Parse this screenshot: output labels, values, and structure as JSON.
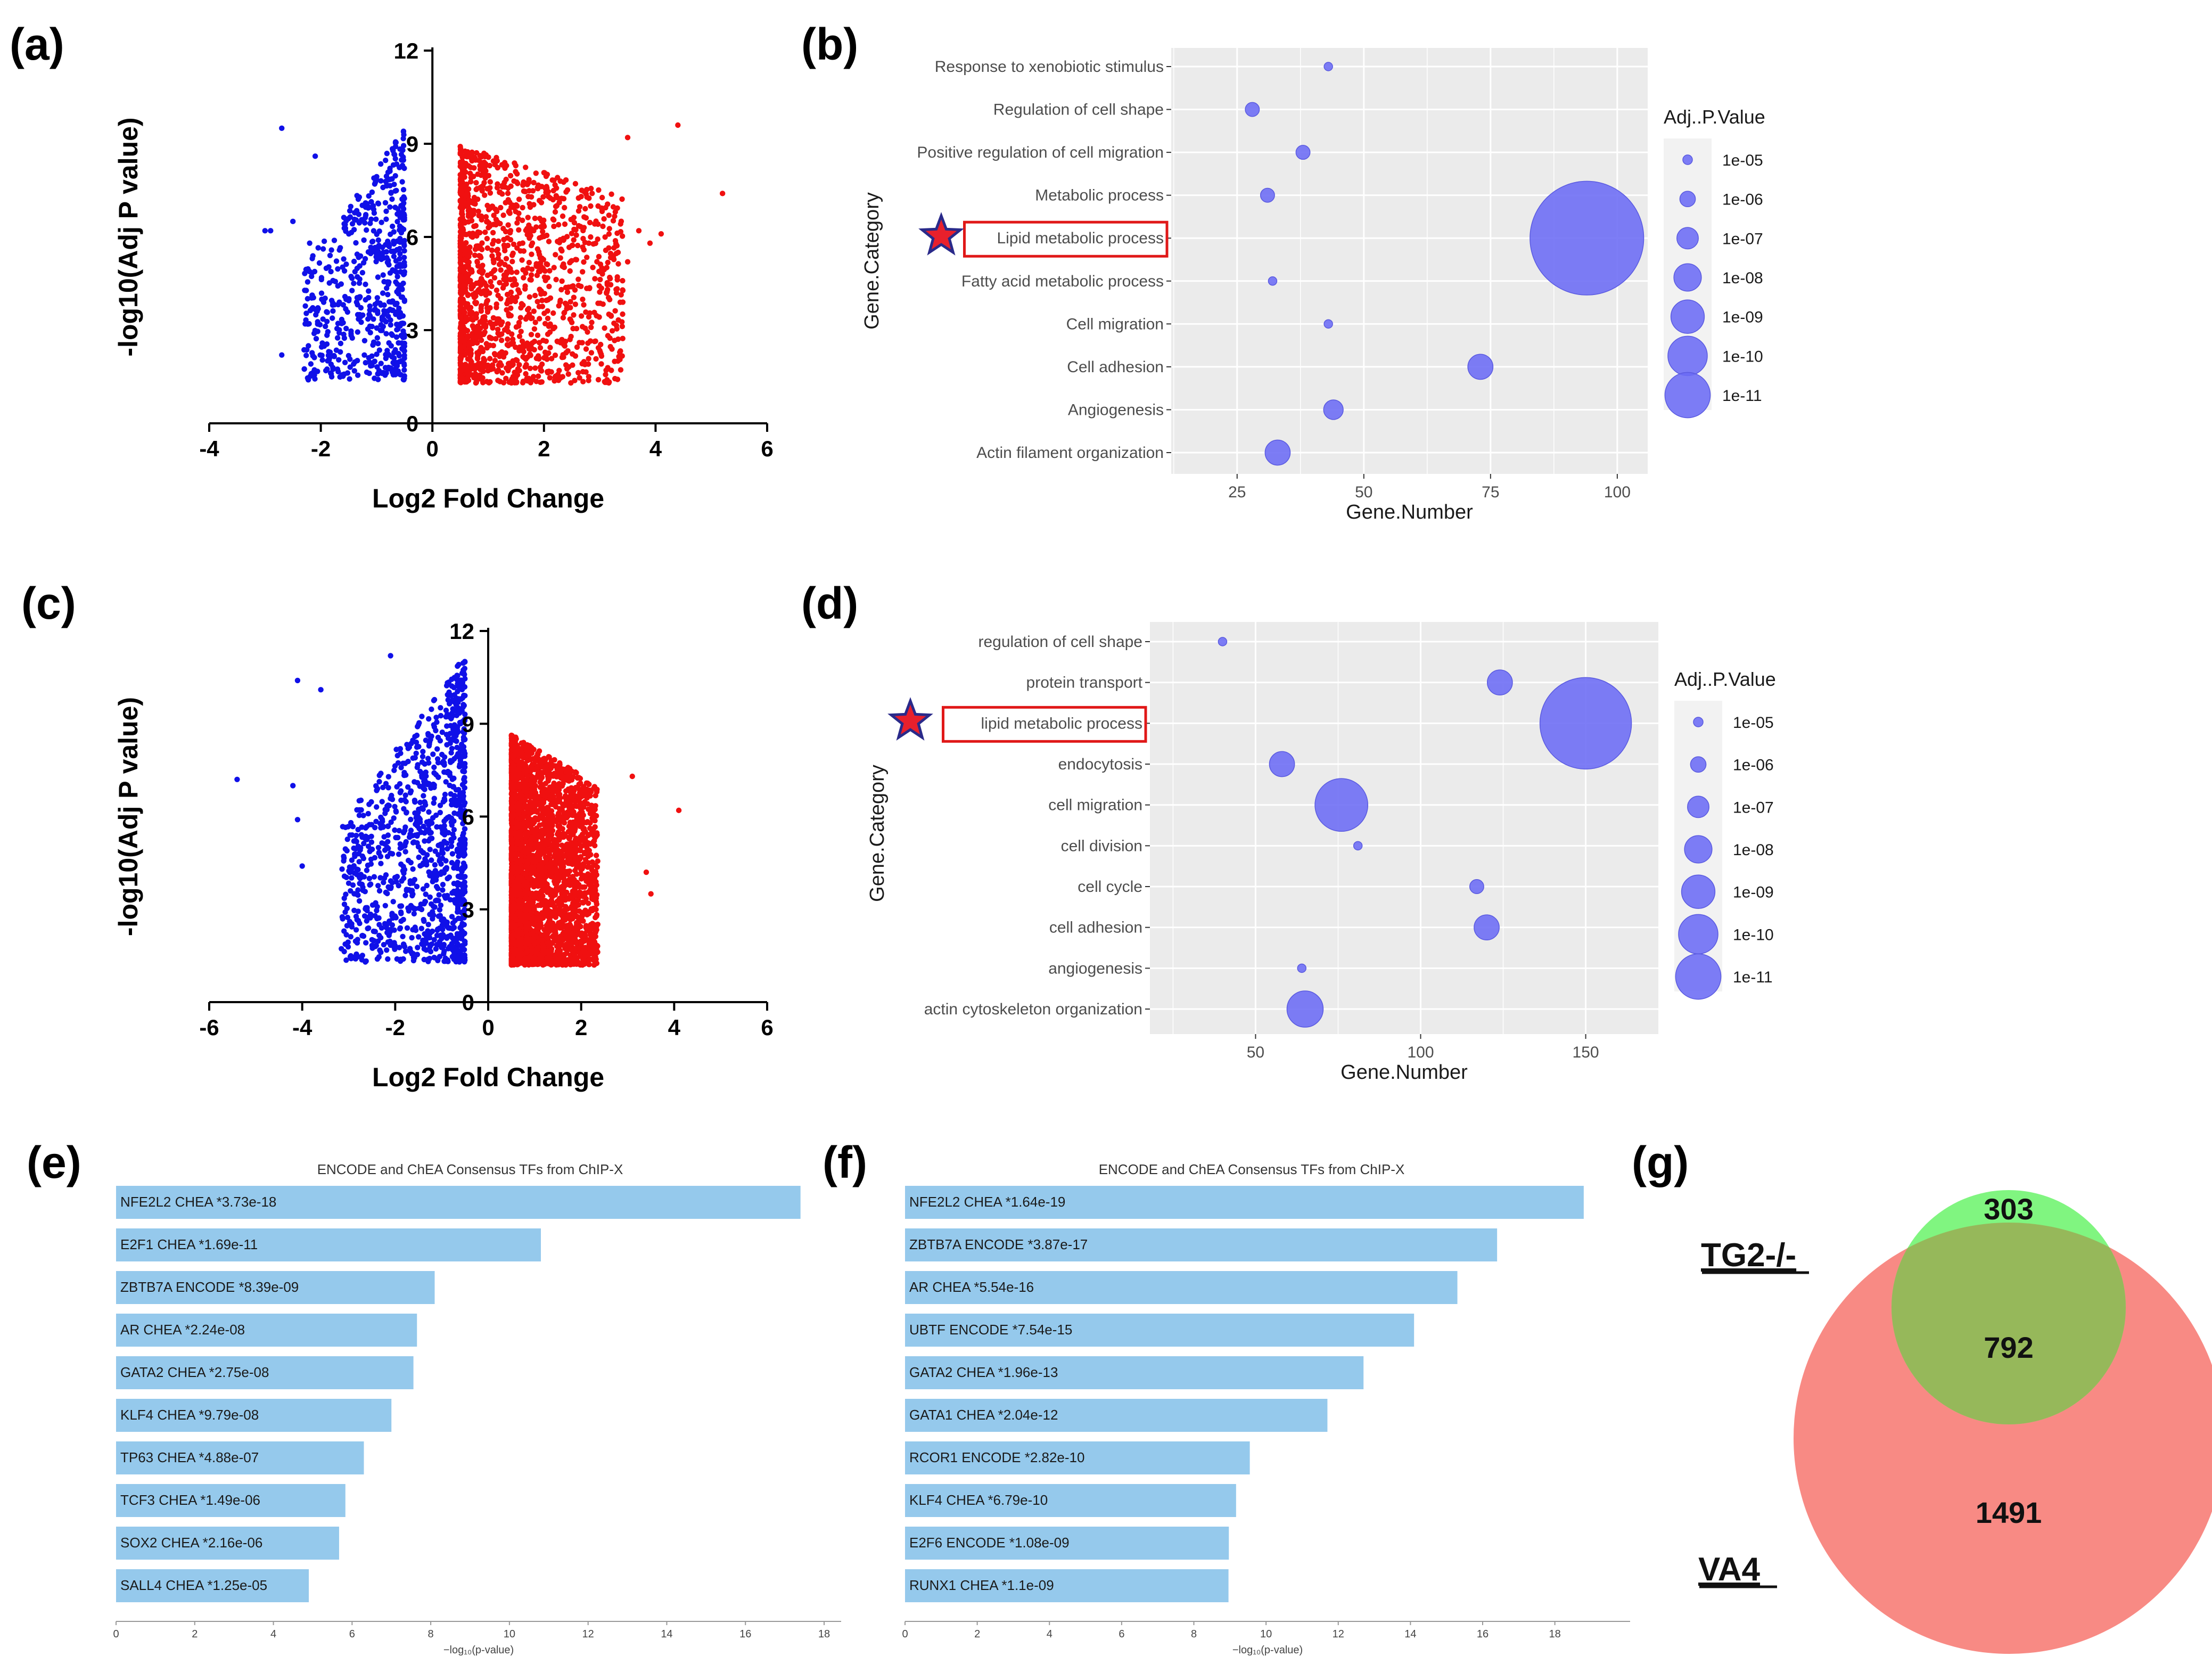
{
  "panel_labels": [
    "(a)",
    "(b)",
    "(c)",
    "(d)",
    "(e)",
    "(f)",
    "(g)"
  ],
  "colors": {
    "down": "#1010e8",
    "up": "#f01010",
    "dot": "#6b6bf5",
    "dot_edge": "#5a5ae0",
    "panel_bg": "#ebebeb",
    "bar": "#95c9ec",
    "highlight_box": "#e01818",
    "star_fill": "#e8202c",
    "star_edge": "#2a2a8a",
    "venn_green": "#80f580",
    "venn_red": "#f88a84",
    "venn_overlap": "#96b85a"
  },
  "chart_data": [
    {
      "id": "a",
      "type": "scatter",
      "title": "",
      "xlabel": "Log2 Fold Change",
      "ylabel": "-log10(Adj P value)",
      "xlim": [
        -4,
        6
      ],
      "ylim": [
        0,
        12
      ],
      "xticks": [
        -4,
        -2,
        0,
        2,
        4,
        6
      ],
      "yticks": [
        0,
        3,
        6,
        9,
        12
      ],
      "series": [
        {
          "name": "down",
          "color": "#1010e8",
          "x_range": [
            -3.0,
            -0.5
          ],
          "y_range": [
            1.4,
            9.5
          ],
          "n_points": 600,
          "outliers": [
            [
              -2.7,
              9.5
            ],
            [
              -2.1,
              8.6
            ],
            [
              -2.9,
              6.2
            ],
            [
              -2.7,
              2.2
            ],
            [
              -2.5,
              6.5
            ],
            [
              -2.2,
              5.8
            ],
            [
              -3.0,
              6.2
            ]
          ]
        },
        {
          "name": "up",
          "color": "#f01010",
          "x_range": [
            0.5,
            5.2
          ],
          "y_range": [
            1.3,
            9.6
          ],
          "n_points": 1450,
          "outliers": [
            [
              4.4,
              9.6
            ],
            [
              5.2,
              7.4
            ],
            [
              3.5,
              9.2
            ],
            [
              3.7,
              6.2
            ],
            [
              4.1,
              6.1
            ],
            [
              3.3,
              4.2
            ],
            [
              3.5,
              5.2
            ],
            [
              3.9,
              5.8
            ]
          ]
        }
      ]
    },
    {
      "id": "b",
      "type": "scatter",
      "title": "",
      "xlabel": "Gene.Number",
      "ylabel": "Gene.Category",
      "xlim": [
        12,
        106
      ],
      "xticks": [
        25,
        50,
        75,
        100
      ],
      "categories": [
        "Response to xenobiotic stimulus",
        "Regulation of cell shape",
        "Positive regulation of cell migration",
        "Metabolic process",
        "Lipid metabolic process",
        "Fatty acid metabolic process",
        "Cell migration",
        "Cell adhesion",
        "Angiogenesis",
        "Actin filament organization"
      ],
      "highlight": "Lipid metabolic process",
      "points": [
        {
          "category": "Response to xenobiotic stimulus",
          "gene_number": 43,
          "adj_p": "1e-05"
        },
        {
          "category": "Regulation of cell shape",
          "gene_number": 28,
          "adj_p": "1e-06"
        },
        {
          "category": "Positive regulation of cell migration",
          "gene_number": 38,
          "adj_p": "1e-06"
        },
        {
          "category": "Metabolic process",
          "gene_number": 31,
          "adj_p": "1e-06"
        },
        {
          "category": "Lipid metabolic process",
          "gene_number": 94,
          "adj_p": "1e-24"
        },
        {
          "category": "Fatty acid metabolic process",
          "gene_number": 32,
          "adj_p": "1e-05"
        },
        {
          "category": "Cell migration",
          "gene_number": 43,
          "adj_p": "1e-05"
        },
        {
          "category": "Cell adhesion",
          "gene_number": 73,
          "adj_p": "1e-08"
        },
        {
          "category": "Angiogenesis",
          "gene_number": 44,
          "adj_p": "1e-07"
        },
        {
          "category": "Actin filament organization",
          "gene_number": 33,
          "adj_p": "1e-08"
        }
      ],
      "legend": {
        "title": "Adj..P.Value",
        "entries": [
          "1e-05",
          "1e-06",
          "1e-07",
          "1e-08",
          "1e-09",
          "1e-10",
          "1e-11"
        ]
      }
    },
    {
      "id": "c",
      "type": "scatter",
      "title": "",
      "xlabel": "Log2 Fold Change",
      "ylabel": "-log10(Adj P value)",
      "xlim": [
        -6,
        6
      ],
      "ylim": [
        0,
        12
      ],
      "xticks": [
        -6,
        -4,
        -2,
        0,
        2,
        4,
        6
      ],
      "yticks": [
        0,
        3,
        6,
        9,
        12
      ],
      "series": [
        {
          "name": "down",
          "color": "#1010e8",
          "x_range": [
            -4.2,
            -0.5
          ],
          "y_range": [
            1.3,
            11.2
          ],
          "n_points": 1100,
          "outliers": [
            [
              -5.4,
              7.2
            ],
            [
              -4.1,
              10.4
            ],
            [
              -3.6,
              10.1
            ],
            [
              -4.2,
              7.0
            ],
            [
              -4.0,
              4.4
            ],
            [
              -4.1,
              5.9
            ],
            [
              -2.1,
              11.2
            ]
          ]
        },
        {
          "name": "up",
          "color": "#f01010",
          "x_range": [
            0.5,
            3.5
          ],
          "y_range": [
            1.2,
            9.3
          ],
          "n_points": 3200,
          "outliers": [
            [
              4.1,
              6.2
            ],
            [
              3.1,
              7.3
            ],
            [
              3.5,
              3.5
            ],
            [
              3.4,
              4.2
            ]
          ]
        }
      ]
    },
    {
      "id": "d",
      "type": "scatter",
      "title": "",
      "xlabel": "Gene.Number",
      "ylabel": "Gene.Category",
      "xlim": [
        18,
        172
      ],
      "xticks": [
        50,
        100,
        150
      ],
      "categories": [
        "regulation of cell shape",
        "protein transport",
        "lipid metabolic process",
        "endocytosis",
        "cell migration",
        "cell division",
        "cell cycle",
        "cell adhesion",
        "angiogenesis",
        "actin cytoskeleton organization"
      ],
      "highlight": "lipid metabolic process",
      "points": [
        {
          "category": "regulation of cell shape",
          "gene_number": 40,
          "adj_p": "1e-05"
        },
        {
          "category": "protein transport",
          "gene_number": 124,
          "adj_p": "1e-08"
        },
        {
          "category": "lipid metabolic process",
          "gene_number": 150,
          "adj_p": "1e-20"
        },
        {
          "category": "endocytosis",
          "gene_number": 58,
          "adj_p": "1e-08"
        },
        {
          "category": "cell migration",
          "gene_number": 76,
          "adj_p": "1e-13"
        },
        {
          "category": "cell division",
          "gene_number": 81,
          "adj_p": "1e-05"
        },
        {
          "category": "cell cycle",
          "gene_number": 117,
          "adj_p": "1e-06"
        },
        {
          "category": "cell adhesion",
          "gene_number": 120,
          "adj_p": "1e-08"
        },
        {
          "category": "angiogenesis",
          "gene_number": 64,
          "adj_p": "1e-05"
        },
        {
          "category": "actin cytoskeleton organization",
          "gene_number": 65,
          "adj_p": "1e-10"
        }
      ],
      "legend": {
        "title": "Adj..P.Value",
        "entries": [
          "1e-05",
          "1e-06",
          "1e-07",
          "1e-08",
          "1e-09",
          "1e-10",
          "1e-11"
        ]
      }
    },
    {
      "id": "e",
      "type": "bar",
      "orientation": "horizontal",
      "title": "ENCODE and ChEA Consensus TFs from ChIP-X",
      "xlabel": "−log₁₀(p‐value)",
      "xlim": [
        0,
        18
      ],
      "xticks": [
        0,
        2,
        4,
        6,
        8,
        10,
        12,
        14,
        16,
        18
      ],
      "categories": [
        "NFE2L2 CHEA  *3.73e-18",
        "E2F1 CHEA  *1.69e-11",
        "ZBTB7A ENCODE  *8.39e-09",
        "AR CHEA  *2.24e-08",
        "GATA2 CHEA  *2.75e-08",
        "KLF4 CHEA  *9.79e-08",
        "TP63 CHEA  *4.88e-07",
        "TCF3 CHEA  *1.49e-06",
        "SOX2 CHEA  *2.16e-06",
        "SALL4 CHEA  *1.25e-05"
      ],
      "values": [
        17.4,
        10.8,
        8.1,
        7.65,
        7.56,
        7.0,
        6.3,
        5.83,
        5.67,
        4.9
      ]
    },
    {
      "id": "f",
      "type": "bar",
      "orientation": "horizontal",
      "title": "ENCODE and ChEA Consensus TFs from ChIP-X",
      "xlabel": "−log₁₀(p‐value)",
      "xlim": [
        0,
        19.2
      ],
      "xticks": [
        0,
        2,
        4,
        6,
        8,
        10,
        12,
        14,
        16,
        18
      ],
      "categories": [
        "NFE2L2 CHEA  *1.64e-19",
        "ZBTB7A ENCODE  *3.87e-17",
        "AR CHEA  *5.54e-16",
        "UBTF ENCODE  *7.54e-15",
        "GATA2 CHEA  *1.96e-13",
        "GATA1 CHEA  *2.04e-12",
        "RCOR1 ENCODE  *2.82e-10",
        "KLF4 CHEA  *6.79e-10",
        "E2F6 ENCODE  *1.08e-09",
        "RUNX1 CHEA  *1.1e-09"
      ],
      "values": [
        18.8,
        16.4,
        15.3,
        14.1,
        12.7,
        11.7,
        9.55,
        9.17,
        8.97,
        8.96
      ]
    },
    {
      "id": "g",
      "type": "venn",
      "sets": [
        "TG2-/-",
        "VA4"
      ],
      "only_first": 303,
      "overlap": 792,
      "only_second": 1491
    }
  ]
}
